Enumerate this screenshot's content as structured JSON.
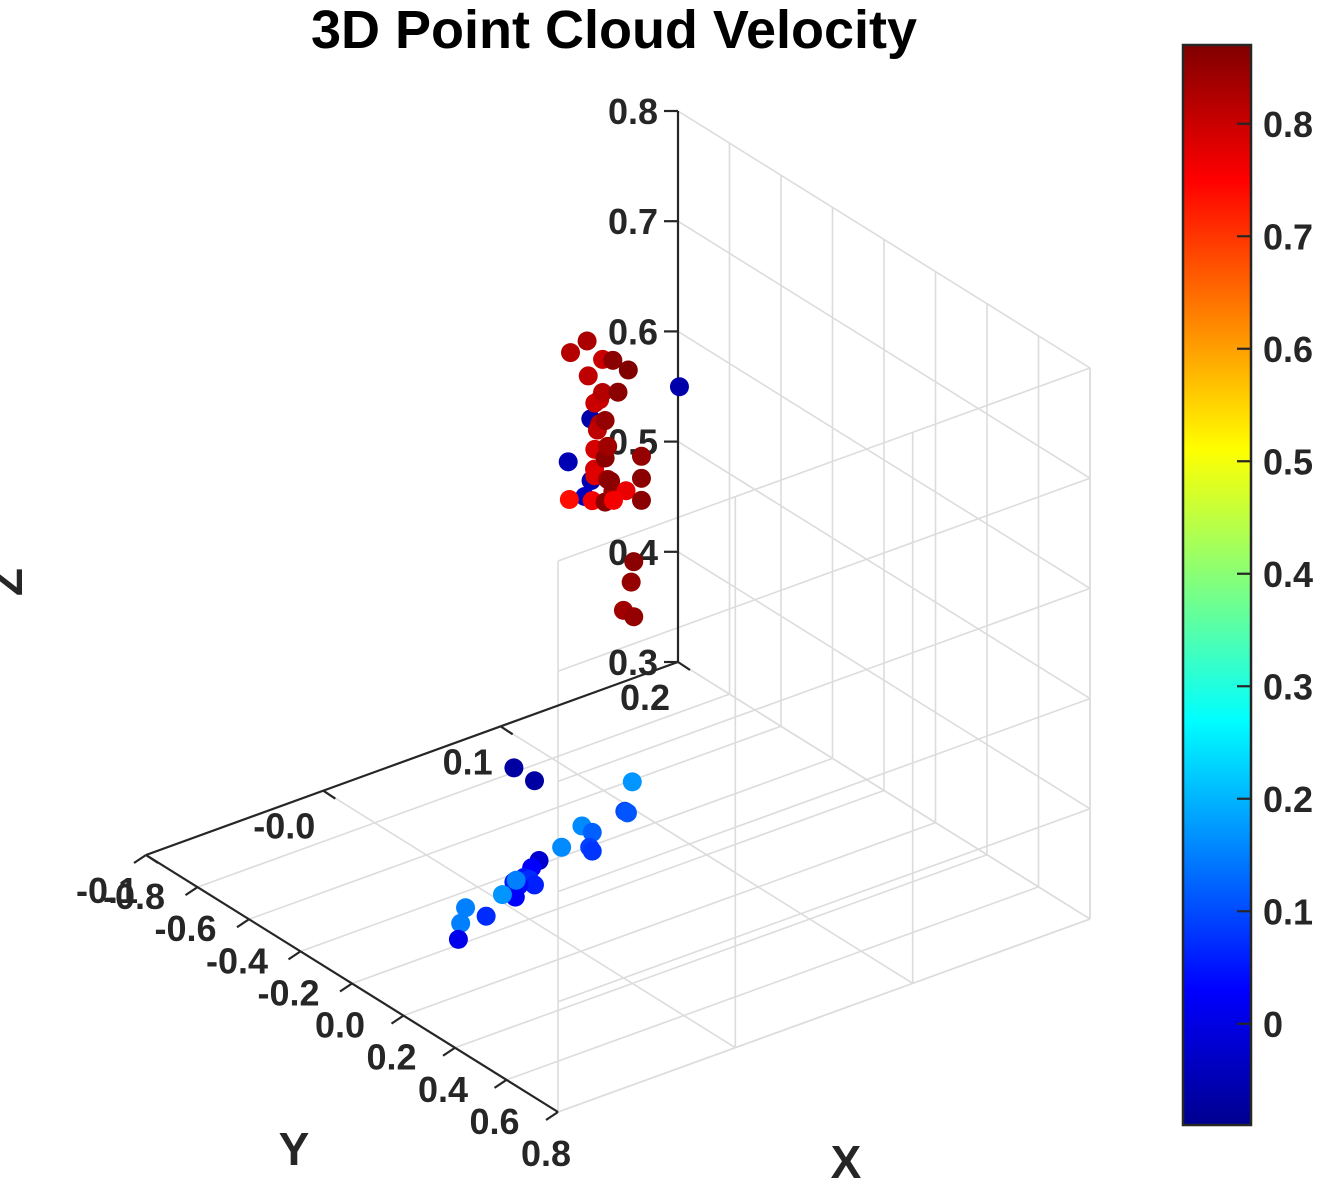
{
  "chart_data": {
    "type": "scatter",
    "dimensions": 3,
    "title": "3D Point Cloud Velocity",
    "xlabel": "X",
    "ylabel": "Y",
    "zlabel": "Z",
    "xlim": [
      -0.8,
      0.8
    ],
    "ylim": [
      -0.1,
      0.2
    ],
    "zlim": [
      0.3,
      0.8
    ],
    "xticks": [
      "-0.8",
      "-0.6",
      "-0.4",
      "-0.2",
      "0.0",
      "0.2",
      "0.4",
      "0.6",
      "0.8"
    ],
    "yticks": [
      "-0.1",
      "-0.0",
      "0.1",
      "0.2"
    ],
    "zticks": [
      "0.3",
      "0.4",
      "0.5",
      "0.6",
      "0.7",
      "0.8"
    ],
    "grid": true,
    "colormap": "jet",
    "colorbar": {
      "location": "right",
      "clim": [
        -0.09,
        0.87
      ],
      "ticks": [
        "0",
        "0.1",
        "0.2",
        "0.3",
        "0.4",
        "0.5",
        "0.6",
        "0.7",
        "0.8"
      ]
    },
    "points": [
      {
        "x": 0.25,
        "y": -0.045,
        "z": 0.5,
        "v": -0.07
      },
      {
        "x": 0.33,
        "y": -0.045,
        "z": 0.5,
        "v": -0.07
      },
      {
        "x": -0.45,
        "y": 0.15,
        "z": 0.63,
        "v": -0.06
      },
      {
        "x": -0.45,
        "y": 0.1,
        "z": 0.63,
        "v": -0.06
      },
      {
        "x": -0.4,
        "y": 0.08,
        "z": 0.61,
        "v": -0.05
      },
      {
        "x": -0.38,
        "y": 0.09,
        "z": 0.59,
        "v": -0.05
      },
      {
        "x": -0.37,
        "y": 0.085,
        "z": 0.58,
        "v": -0.04
      },
      {
        "x": -0.15,
        "y": 0.045,
        "z": 0.766,
        "v": 0.82
      },
      {
        "x": -0.12,
        "y": 0.05,
        "z": 0.778,
        "v": 0.83
      },
      {
        "x": -0.06,
        "y": 0.05,
        "z": 0.77,
        "v": 0.8
      },
      {
        "x": -0.15,
        "y": 0.055,
        "z": 0.739,
        "v": 0.81
      },
      {
        "x": -0.14,
        "y": 0.06,
        "z": 0.716,
        "v": 0.8
      },
      {
        "x": -0.14,
        "y": 0.06,
        "z": 0.694,
        "v": 0.82
      },
      {
        "x": -0.14,
        "y": 0.06,
        "z": 0.67,
        "v": 0.83
      },
      {
        "x": -0.16,
        "y": 0.06,
        "z": 0.65,
        "v": 0.79
      },
      {
        "x": -0.12,
        "y": 0.04,
        "z": 0.64,
        "v": 0.74
      },
      {
        "x": -0.1,
        "y": 0.05,
        "z": 0.636,
        "v": 0.76
      },
      {
        "x": -0.09,
        "y": 0.05,
        "z": 0.66,
        "v": 0.78
      },
      {
        "x": -0.09,
        "y": 0.05,
        "z": 0.684,
        "v": 0.79
      },
      {
        "x": -0.08,
        "y": 0.05,
        "z": 0.703,
        "v": 0.81
      },
      {
        "x": -0.09,
        "y": 0.05,
        "z": 0.726,
        "v": 0.8
      },
      {
        "x": -0.06,
        "y": 0.05,
        "z": 0.74,
        "v": 0.82
      },
      {
        "x": -0.05,
        "y": 0.05,
        "z": 0.716,
        "v": 0.85
      },
      {
        "x": -0.05,
        "y": 0.05,
        "z": 0.682,
        "v": 0.86
      },
      {
        "x": -0.04,
        "y": 0.05,
        "z": 0.664,
        "v": 0.85
      },
      {
        "x": -0.04,
        "y": 0.05,
        "z": 0.694,
        "v": 0.84
      },
      {
        "x": -0.05,
        "y": 0.05,
        "z": 0.642,
        "v": 0.86
      },
      {
        "x": -0.02,
        "y": 0.05,
        "z": 0.656,
        "v": 0.84
      },
      {
        "x": 0.0,
        "y": 0.05,
        "z": 0.749,
        "v": 0.86
      },
      {
        "x": -0.02,
        "y": 0.05,
        "z": 0.775,
        "v": 0.86
      },
      {
        "x": 0.04,
        "y": 0.05,
        "z": 0.775,
        "v": 0.87
      },
      {
        "x": 0.04,
        "y": 0.04,
        "z": 0.68,
        "v": 0.86
      },
      {
        "x": 0.1,
        "y": 0.04,
        "z": 0.68,
        "v": 0.77
      },
      {
        "x": 0.12,
        "y": 0.03,
        "z": 0.68,
        "v": 0.76
      },
      {
        "x": 0.16,
        "y": 0.04,
        "z": 0.7,
        "v": 0.86
      },
      {
        "x": 0.16,
        "y": 0.04,
        "z": 0.72,
        "v": 0.85
      },
      {
        "x": 0.16,
        "y": 0.04,
        "z": 0.68,
        "v": 0.86
      },
      {
        "x": 0.13,
        "y": 0.04,
        "z": 0.62,
        "v": 0.86
      },
      {
        "x": 0.12,
        "y": 0.04,
        "z": 0.6,
        "v": 0.85
      },
      {
        "x": 0.09,
        "y": 0.04,
        "z": 0.57,
        "v": 0.84
      },
      {
        "x": 0.13,
        "y": 0.04,
        "z": 0.57,
        "v": 0.85
      },
      {
        "x": -0.22,
        "y": 0.09,
        "z": 0.34,
        "v": 0.17
      },
      {
        "x": -0.18,
        "y": 0.08,
        "z": 0.325,
        "v": 0.1
      },
      {
        "x": -0.17,
        "y": 0.08,
        "z": 0.325,
        "v": 0.11
      },
      {
        "x": -0.14,
        "y": 0.05,
        "z": 0.335,
        "v": 0.16
      },
      {
        "x": -0.1,
        "y": 0.05,
        "z": 0.335,
        "v": 0.12
      },
      {
        "x": -0.11,
        "y": 0.05,
        "z": 0.32,
        "v": 0.09
      },
      {
        "x": -0.1,
        "y": 0.05,
        "z": 0.318,
        "v": 0.08
      },
      {
        "x": -0.15,
        "y": 0.04,
        "z": 0.32,
        "v": 0.16
      },
      {
        "x": -0.1,
        "y": 0.02,
        "z": 0.327,
        "v": -0.02
      },
      {
        "x": -0.06,
        "y": 0.01,
        "z": 0.332,
        "v": 0.03
      },
      {
        "x": -0.02,
        "y": 0.0,
        "z": 0.335,
        "v": 0.05
      },
      {
        "x": 0.0,
        "y": 0.0,
        "z": 0.336,
        "v": 0.07
      },
      {
        "x": 0.02,
        "y": 0.0,
        "z": 0.334,
        "v": 0.06
      },
      {
        "x": -0.06,
        "y": 0.0,
        "z": 0.325,
        "v": 0.05
      },
      {
        "x": -0.04,
        "y": 0.0,
        "z": 0.325,
        "v": 0.04
      },
      {
        "x": -0.02,
        "y": -0.005,
        "z": 0.32,
        "v": 0.03
      },
      {
        "x": -0.12,
        "y": 0.01,
        "z": 0.312,
        "v": 0.15
      },
      {
        "x": -0.07,
        "y": -0.005,
        "z": 0.315,
        "v": 0.17
      },
      {
        "x": -0.03,
        "y": -0.02,
        "z": 0.31,
        "v": 0.07
      },
      {
        "x": -0.11,
        "y": -0.02,
        "z": 0.306,
        "v": 0.15
      },
      {
        "x": -0.06,
        "y": -0.03,
        "z": 0.305,
        "v": 0.15
      },
      {
        "x": 0.0,
        "y": -0.04,
        "z": 0.305,
        "v": 0.01
      }
    ]
  }
}
